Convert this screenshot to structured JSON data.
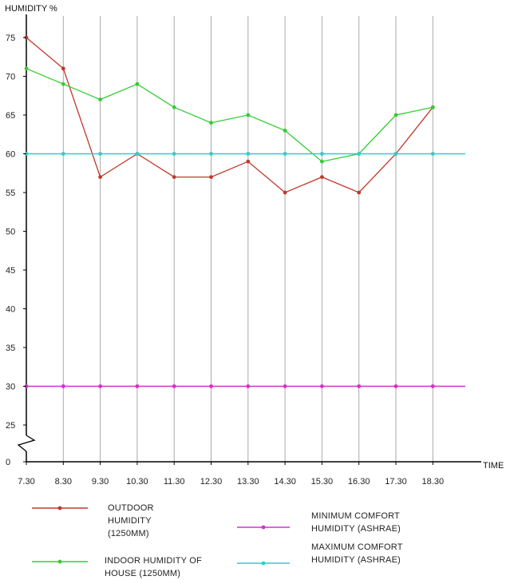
{
  "chart_data": {
    "type": "line",
    "ylabel": "HUMIDITY %",
    "xlabel": "TIME",
    "categories": [
      "7.30",
      "8.30",
      "9.30",
      "10.30",
      "11.30",
      "12.30",
      "13.30",
      "14.30",
      "15.30",
      "16.30",
      "17.30",
      "18.30"
    ],
    "y_ticks": [
      0,
      25,
      30,
      35,
      40,
      45,
      50,
      55,
      60,
      65,
      70,
      75
    ],
    "ylim": [
      25,
      77
    ],
    "axis_break": true,
    "grid": "vertical",
    "series": [
      {
        "name": "OUTDOOR HUMIDITY (1250MM)",
        "label_lines": [
          "OUTDOOR",
          "HUMIDITY",
          "(1250MM)"
        ],
        "color": "#c0392b",
        "values": [
          75,
          71,
          57,
          60,
          57,
          57,
          59,
          55,
          57,
          55,
          60,
          66
        ]
      },
      {
        "name": "INDOOR HUMIDITY OF HOUSE (1250MM)",
        "label_lines": [
          "INDOOR HUMIDITY OF",
          "HOUSE (1250MM)"
        ],
        "color": "#33cc33",
        "values": [
          71,
          69,
          67,
          69,
          66,
          64,
          65,
          63,
          59,
          60,
          65,
          66
        ]
      },
      {
        "name": "MINIMUM COMFORT HUMIDITY (ASHRAE)",
        "label_lines": [
          "MINIMUM COMFORT",
          "HUMIDITY (ASHRAE)"
        ],
        "color": "#cc33cc",
        "values": [
          30,
          30,
          30,
          30,
          30,
          30,
          30,
          30,
          30,
          30,
          30,
          30
        ],
        "line_extends": true
      },
      {
        "name": "MAXIMUM COMFORT HUMIDITY (ASHRAE)",
        "label_lines": [
          "MAXIMUM COMFORT",
          "HUMIDITY (ASHRAE)"
        ],
        "color": "#33cccc",
        "values": [
          60,
          60,
          60,
          60,
          60,
          60,
          60,
          60,
          60,
          60,
          60,
          60
        ],
        "line_extends": true
      }
    ],
    "legend_position": "bottom"
  }
}
